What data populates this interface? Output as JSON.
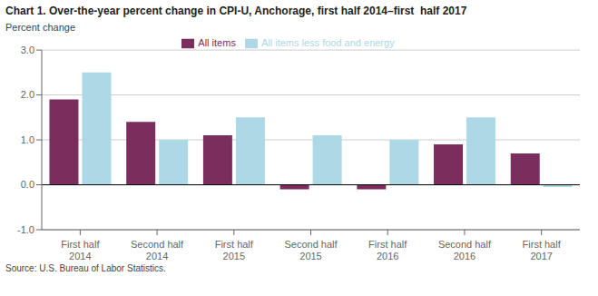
{
  "chart_data": {
    "type": "bar",
    "title": "Chart 1. Over-the-year percent change in CPI-U, Anchorage, first half 2014–first  half 2017",
    "ylabel": "Percent change",
    "annotations": [
      "Source: U.S. Bureau of Labor Statistics."
    ],
    "categories": [
      "First half 2014",
      "Second half 2014",
      "First half 2015",
      "Second half 2015",
      "First half 2016",
      "Second half 2016",
      "First half 2017"
    ],
    "series": [
      {
        "name": "All items",
        "color": "#7B2D5E",
        "values": [
          1.9,
          1.4,
          1.1,
          -0.1,
          -0.1,
          0.9,
          0.7
        ]
      },
      {
        "name": "All items less food and energy",
        "color": "#ADD8E6",
        "values": [
          2.5,
          1.0,
          1.5,
          1.1,
          1.0,
          1.5,
          -0.05
        ]
      }
    ],
    "ylim": [
      -1.0,
      3.0
    ],
    "yticks": [
      {
        "value": -1.0,
        "label": "-1.0"
      },
      {
        "value": 0.0,
        "label": "0.0"
      },
      {
        "value": 1.0,
        "label": "1.0"
      },
      {
        "value": 2.0,
        "label": "2.0"
      },
      {
        "value": 3.0,
        "label": "3.0"
      }
    ],
    "grid": true,
    "legend": "top"
  }
}
